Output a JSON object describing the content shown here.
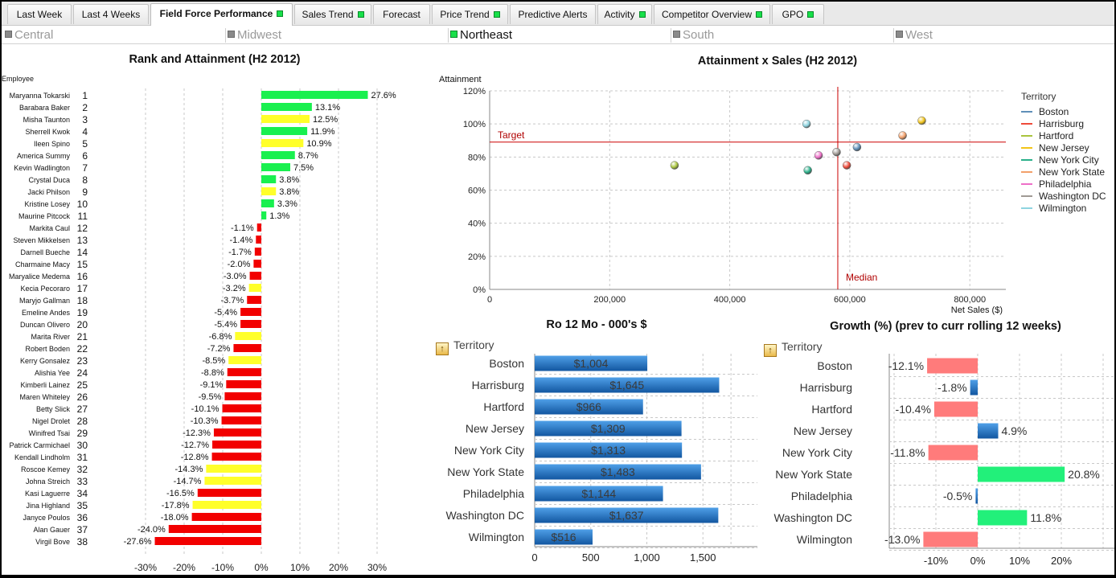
{
  "tabs": [
    {
      "label": "Last Week",
      "active": false,
      "indicator": false
    },
    {
      "label": "Last 4 Weeks",
      "active": false,
      "indicator": false
    },
    {
      "label": "Field Force Performance",
      "active": true,
      "indicator": true
    },
    {
      "label": "Sales Trend",
      "active": false,
      "indicator": true
    },
    {
      "label": "Forecast",
      "active": false,
      "indicator": false
    },
    {
      "label": "Price Trend",
      "active": false,
      "indicator": true
    },
    {
      "label": "Predictive Alerts",
      "active": false,
      "indicator": false
    },
    {
      "label": "Activity",
      "active": false,
      "indicator": true
    },
    {
      "label": "Competitor Overview",
      "active": false,
      "indicator": true
    },
    {
      "label": "GPO",
      "active": false,
      "indicator": true
    }
  ],
  "regions": [
    {
      "label": "Central",
      "selected": false
    },
    {
      "label": "Midwest",
      "selected": false
    },
    {
      "label": "Northeast",
      "selected": true
    },
    {
      "label": "South",
      "selected": false
    },
    {
      "label": "West",
      "selected": false
    }
  ],
  "colors": {
    "green_bar": "#19f04f",
    "yellow_bar": "#ffff2a",
    "red_bar": "#f20000",
    "blue_bar": "#1f6fbf",
    "growth_negative": "#ff7b7b",
    "growth_positive": "#22f07a",
    "reference_line": "#cc0000"
  },
  "rank_chart": {
    "title": "Rank and Attainment (H2 2012)",
    "employee_header": "Employee",
    "employees": [
      {
        "name": "Maryanna Tokarski",
        "rank": "1",
        "value": 27.6,
        "label": "27.6%",
        "color": "green"
      },
      {
        "name": "Barabara Baker",
        "rank": "2",
        "value": 13.1,
        "label": "13.1%",
        "color": "green"
      },
      {
        "name": "Misha Taunton",
        "rank": "3",
        "value": 12.5,
        "label": "12.5%",
        "color": "yellow"
      },
      {
        "name": "Sherrell Kwok",
        "rank": "4",
        "value": 11.9,
        "label": "11.9%",
        "color": "green"
      },
      {
        "name": "Ileen Spino",
        "rank": "5",
        "value": 10.9,
        "label": "10.9%",
        "color": "yellow"
      },
      {
        "name": "America Summy",
        "rank": "6",
        "value": 8.7,
        "label": "8.7%",
        "color": "green"
      },
      {
        "name": "Kevin Wadlington",
        "rank": "7",
        "value": 7.5,
        "label": "7.5%",
        "color": "green"
      },
      {
        "name": "Crystal Duca",
        "rank": "8",
        "value": 3.8,
        "label": "3.8%",
        "color": "green"
      },
      {
        "name": "Jacki Philson",
        "rank": "9",
        "value": 3.8,
        "label": "3.8%",
        "color": "yellow"
      },
      {
        "name": "Kristine Losey",
        "rank": "10",
        "value": 3.3,
        "label": "3.3%",
        "color": "green"
      },
      {
        "name": "Maurine Pitcock",
        "rank": "11",
        "value": 1.3,
        "label": "1.3%",
        "color": "green"
      },
      {
        "name": "Markita Caul",
        "rank": "12",
        "value": -1.1,
        "label": "-1.1%",
        "color": "red"
      },
      {
        "name": "Steven Mikkelsen",
        "rank": "13",
        "value": -1.4,
        "label": "-1.4%",
        "color": "red"
      },
      {
        "name": "Darnell Bueche",
        "rank": "14",
        "value": -1.7,
        "label": "-1.7%",
        "color": "red"
      },
      {
        "name": "Charmaine Macy",
        "rank": "15",
        "value": -2.0,
        "label": "-2.0%",
        "color": "red"
      },
      {
        "name": "Maryalice Medema",
        "rank": "16",
        "value": -3.0,
        "label": "-3.0%",
        "color": "red"
      },
      {
        "name": "Kecia Pecoraro",
        "rank": "17",
        "value": -3.2,
        "label": "-3.2%",
        "color": "yellow"
      },
      {
        "name": "Maryjo Gallman",
        "rank": "18",
        "value": -3.7,
        "label": "-3.7%",
        "color": "red"
      },
      {
        "name": "Emeline Andes",
        "rank": "19",
        "value": -5.4,
        "label": "-5.4%",
        "color": "red"
      },
      {
        "name": "Duncan Olivero",
        "rank": "20",
        "value": -5.4,
        "label": "-5.4%",
        "color": "red"
      },
      {
        "name": "Marita River",
        "rank": "21",
        "value": -6.8,
        "label": "-6.8%",
        "color": "yellow"
      },
      {
        "name": "Robert Boden",
        "rank": "22",
        "value": -7.2,
        "label": "-7.2%",
        "color": "red"
      },
      {
        "name": "Kerry Gonsalez",
        "rank": "23",
        "value": -8.5,
        "label": "-8.5%",
        "color": "yellow"
      },
      {
        "name": "Alishia Yee",
        "rank": "24",
        "value": -8.8,
        "label": "-8.8%",
        "color": "red"
      },
      {
        "name": "Kimberli Lainez",
        "rank": "25",
        "value": -9.1,
        "label": "-9.1%",
        "color": "red"
      },
      {
        "name": "Maren Whiteley",
        "rank": "26",
        "value": -9.5,
        "label": "-9.5%",
        "color": "red"
      },
      {
        "name": "Betty Slick",
        "rank": "27",
        "value": -10.1,
        "label": "-10.1%",
        "color": "red"
      },
      {
        "name": "Nigel Drolet",
        "rank": "28",
        "value": -10.3,
        "label": "-10.3%",
        "color": "red"
      },
      {
        "name": "Winifred Tsai",
        "rank": "29",
        "value": -12.3,
        "label": "-12.3%",
        "color": "red"
      },
      {
        "name": "Patrick Carmichael",
        "rank": "30",
        "value": -12.7,
        "label": "-12.7%",
        "color": "red"
      },
      {
        "name": "Kendall Lindholm",
        "rank": "31",
        "value": -12.8,
        "label": "-12.8%",
        "color": "red"
      },
      {
        "name": "Roscoe Kemey",
        "rank": "32",
        "value": -14.3,
        "label": "-14.3%",
        "color": "yellow"
      },
      {
        "name": "Johna Streich",
        "rank": "33",
        "value": -14.7,
        "label": "-14.7%",
        "color": "yellow"
      },
      {
        "name": "Kasi Laguerre",
        "rank": "34",
        "value": -16.5,
        "label": "-16.5%",
        "color": "red"
      },
      {
        "name": "Jina Highland",
        "rank": "35",
        "value": -17.8,
        "label": "-17.8%",
        "color": "yellow"
      },
      {
        "name": "Janyce Poulos",
        "rank": "36",
        "value": -18.0,
        "label": "-18.0%",
        "color": "red"
      },
      {
        "name": "Alan Gauer",
        "rank": "37",
        "value": -24.0,
        "label": "-24.0%",
        "color": "red"
      },
      {
        "name": "Virgil Bove",
        "rank": "38",
        "value": -27.6,
        "label": "-27.6%",
        "color": "red"
      }
    ],
    "ticks": [
      -30,
      -20,
      -10,
      0,
      10,
      20,
      30
    ],
    "tick_labels": [
      "-30%",
      "-20%",
      "-10%",
      "0%",
      "10%",
      "20%",
      "30%"
    ]
  },
  "scatter_chart": {
    "title": "Attainment x Sales (H2 2012)",
    "ylabel": "Attainment",
    "xlabel": "Net Sales ($)",
    "x_ticks": [
      0,
      200000,
      400000,
      600000,
      800000
    ],
    "x_tick_labels": [
      "0",
      "200,000",
      "400,000",
      "600,000",
      "800,000"
    ],
    "y_ticks": [
      0,
      20,
      40,
      60,
      80,
      100,
      120
    ],
    "y_tick_labels": [
      "0%",
      "20%",
      "40%",
      "60%",
      "80%",
      "100%",
      "120%"
    ],
    "target_label": "Target",
    "target_value": 89,
    "median_label": "Median",
    "median_value": 580000,
    "legend_title": "Territory",
    "points": [
      {
        "name": "Boston",
        "x": 612000,
        "y": 86,
        "color": "#5f8fb8"
      },
      {
        "name": "Harrisburg",
        "x": 595000,
        "y": 75,
        "color": "#ee4a3a"
      },
      {
        "name": "Hartford",
        "x": 308000,
        "y": 75,
        "color": "#a9c43e"
      },
      {
        "name": "New Jersey",
        "x": 720000,
        "y": 102,
        "color": "#f2c418"
      },
      {
        "name": "New York City",
        "x": 530000,
        "y": 72,
        "color": "#2ab08a"
      },
      {
        "name": "New York State",
        "x": 688000,
        "y": 93,
        "color": "#f2a06a"
      },
      {
        "name": "Philadelphia",
        "x": 548000,
        "y": 81,
        "color": "#ee6fc8"
      },
      {
        "name": "Washington DC",
        "x": 578000,
        "y": 83,
        "color": "#a09a95"
      },
      {
        "name": "Wilmington",
        "x": 528000,
        "y": 100,
        "color": "#8ed4e0"
      }
    ]
  },
  "sales_chart": {
    "title": "Ro 12 Mo - 000's $",
    "header": "Territory",
    "ticks": [
      0,
      500,
      1000,
      1500
    ],
    "tick_labels": [
      "0",
      "500",
      "1,000",
      "1,500"
    ],
    "categories": [
      "Boston",
      "Harrisburg",
      "Hartford",
      "New Jersey",
      "New York City",
      "New York State",
      "Philadelphia",
      "Washington DC",
      "Wilmington"
    ],
    "values": [
      1004,
      1645,
      966,
      1309,
      1313,
      1483,
      1144,
      1637,
      516
    ],
    "labels": [
      "$1,004",
      "$1,645",
      "$966",
      "$1,309",
      "$1,313",
      "$1,483",
      "$1,144",
      "$1,637",
      "$516"
    ]
  },
  "growth_chart": {
    "title": "Growth (%) (prev to curr rolling 12 weeks)",
    "header": "Territory",
    "ticks": [
      -10,
      0,
      10,
      20
    ],
    "tick_labels": [
      "-10%",
      "0%",
      "10%",
      "20%"
    ],
    "categories": [
      "Boston",
      "Harrisburg",
      "Hartford",
      "New Jersey",
      "New York City",
      "New York State",
      "Philadelphia",
      "Washington DC",
      "Wilmington"
    ],
    "values": [
      -12.1,
      -1.8,
      -10.4,
      4.9,
      -11.8,
      20.8,
      -0.5,
      11.8,
      -13.0
    ],
    "labels": [
      "-12.1%",
      "-1.8%",
      "-10.4%",
      "4.9%",
      "-11.8%",
      "20.8%",
      "-0.5%",
      "11.8%",
      "-13.0%"
    ],
    "bar_colors": [
      "negative",
      "blue",
      "negative",
      "blue",
      "negative",
      "positive",
      "blue",
      "positive",
      "negative"
    ]
  }
}
